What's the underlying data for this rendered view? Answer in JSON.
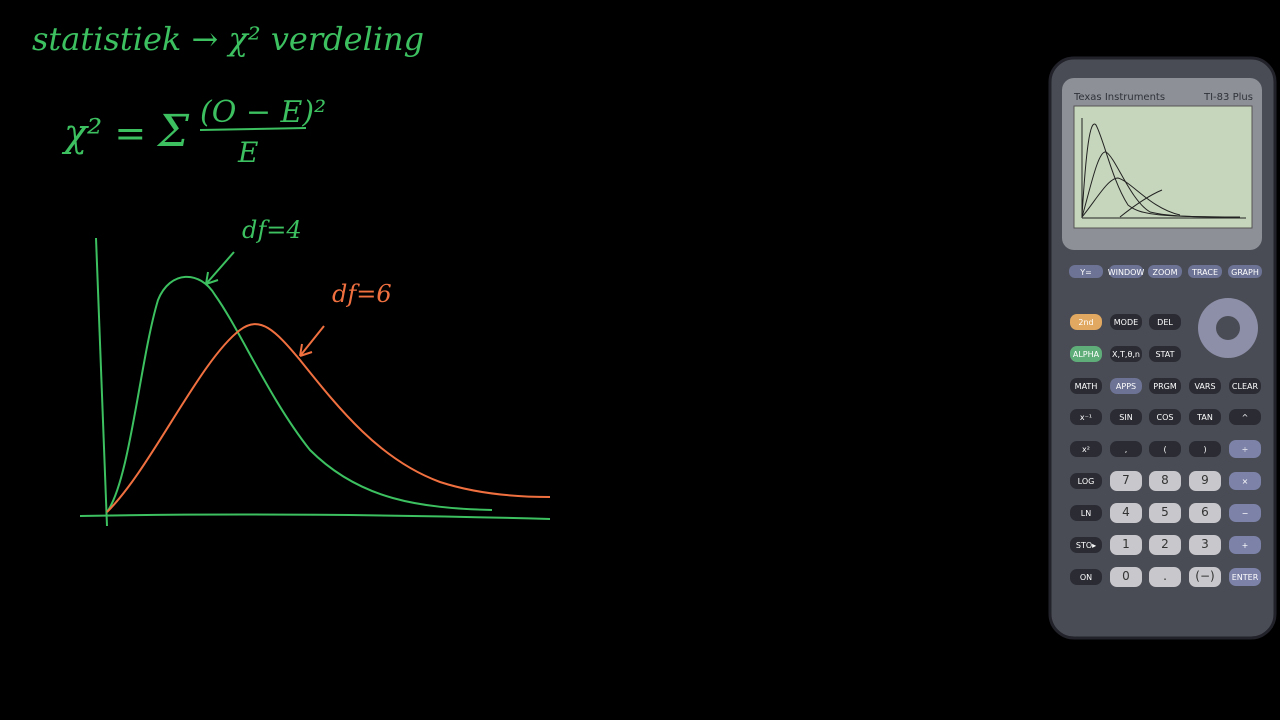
{
  "board": {
    "heading": "statistiek → χ² verdeling",
    "formula": {
      "lhs": "χ² =",
      "sigma": "Σ",
      "numerator": "(O − E)²",
      "denominator": "E"
    },
    "curve_labels": [
      "df=4",
      "df=6"
    ]
  },
  "calculator": {
    "brand": "Texas Instruments",
    "model": "TI-83 Plus",
    "function_keys": [
      "Y=",
      "WINDOW",
      "ZOOM",
      "TRACE",
      "GRAPH"
    ],
    "keys": [
      [
        "2nd",
        "MODE",
        "DEL"
      ],
      [
        "ALPHA",
        "X,T,θ,n",
        "STAT"
      ],
      [
        "MATH",
        "APPS",
        "PRGM",
        "VARS",
        "CLEAR"
      ],
      [
        "x⁻¹",
        "SIN",
        "COS",
        "TAN",
        "^"
      ],
      [
        "x²",
        ",",
        "(",
        ")",
        "÷"
      ],
      [
        "LOG",
        "7",
        "8",
        "9",
        "×"
      ],
      [
        "LN",
        "4",
        "5",
        "6",
        "−"
      ],
      [
        "STO▸",
        "1",
        "2",
        "3",
        "+"
      ],
      [
        "ON",
        "0",
        ".",
        "(−)",
        "ENTER"
      ]
    ]
  }
}
